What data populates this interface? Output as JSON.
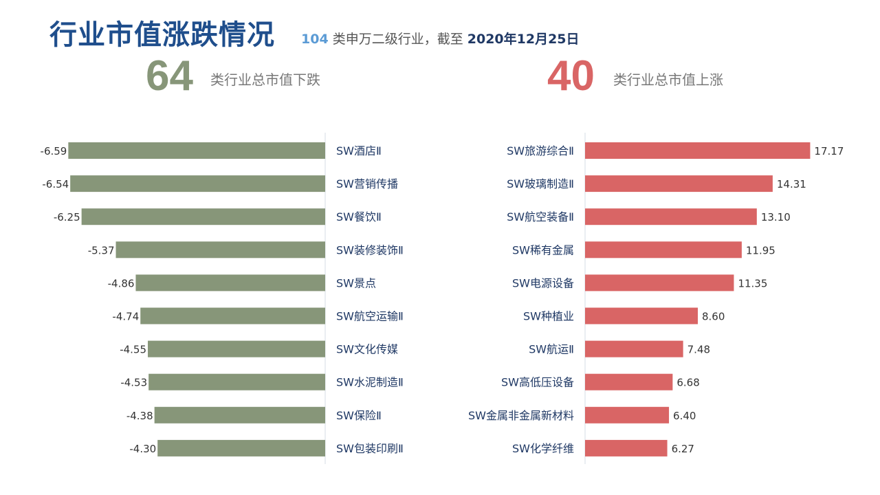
{
  "header": {
    "title": "行业市值涨跌情况",
    "subtitle_count": "104",
    "subtitle_text": " 类申万二级行业，截至 ",
    "subtitle_date": "2020年12月25日"
  },
  "summary": {
    "down_count": "64",
    "down_label": "类行业总市值下跌",
    "up_count": "40",
    "up_label": "类行业总市值上涨"
  },
  "colors": {
    "title": "#1f4e8c",
    "down": "#879679",
    "up": "#d96565",
    "label": "#1f3864"
  },
  "chart_data": [
    {
      "type": "bar",
      "orientation": "horizontal",
      "categories": [
        "SW酒店Ⅱ",
        "SW营销传播",
        "SW餐饮Ⅱ",
        "SW装修装饰Ⅱ",
        "SW景点",
        "SW航空运输Ⅱ",
        "SW文化传媒",
        "SW水泥制造Ⅱ",
        "SW保险Ⅱ",
        "SW包装印刷Ⅱ"
      ],
      "values": [
        -6.59,
        -6.54,
        -6.25,
        -5.37,
        -4.86,
        -4.74,
        -4.55,
        -4.53,
        -4.38,
        -4.3
      ],
      "value_labels": [
        "-6.59",
        "-6.54",
        "-6.25",
        "-5.37",
        "-4.86",
        "-4.74",
        "-4.55",
        "-4.53",
        "-4.38",
        "-4.30"
      ],
      "color": "#879679"
    },
    {
      "type": "bar",
      "orientation": "horizontal",
      "categories": [
        "SW旅游综合Ⅱ",
        "SW玻璃制造Ⅱ",
        "SW航空装备Ⅱ",
        "SW稀有金属",
        "SW电源设备",
        "SW种植业",
        "SW航运Ⅱ",
        "SW高低压设备",
        "SW金属非金属新材料",
        "SW化学纤维"
      ],
      "values": [
        17.17,
        14.31,
        13.1,
        11.95,
        11.35,
        8.6,
        7.48,
        6.68,
        6.4,
        6.27
      ],
      "value_labels": [
        "17.17",
        "14.31",
        "13.10",
        "11.95",
        "11.35",
        "8.60",
        "7.48",
        "6.68",
        "6.40",
        "6.27"
      ],
      "color": "#d96565"
    }
  ]
}
